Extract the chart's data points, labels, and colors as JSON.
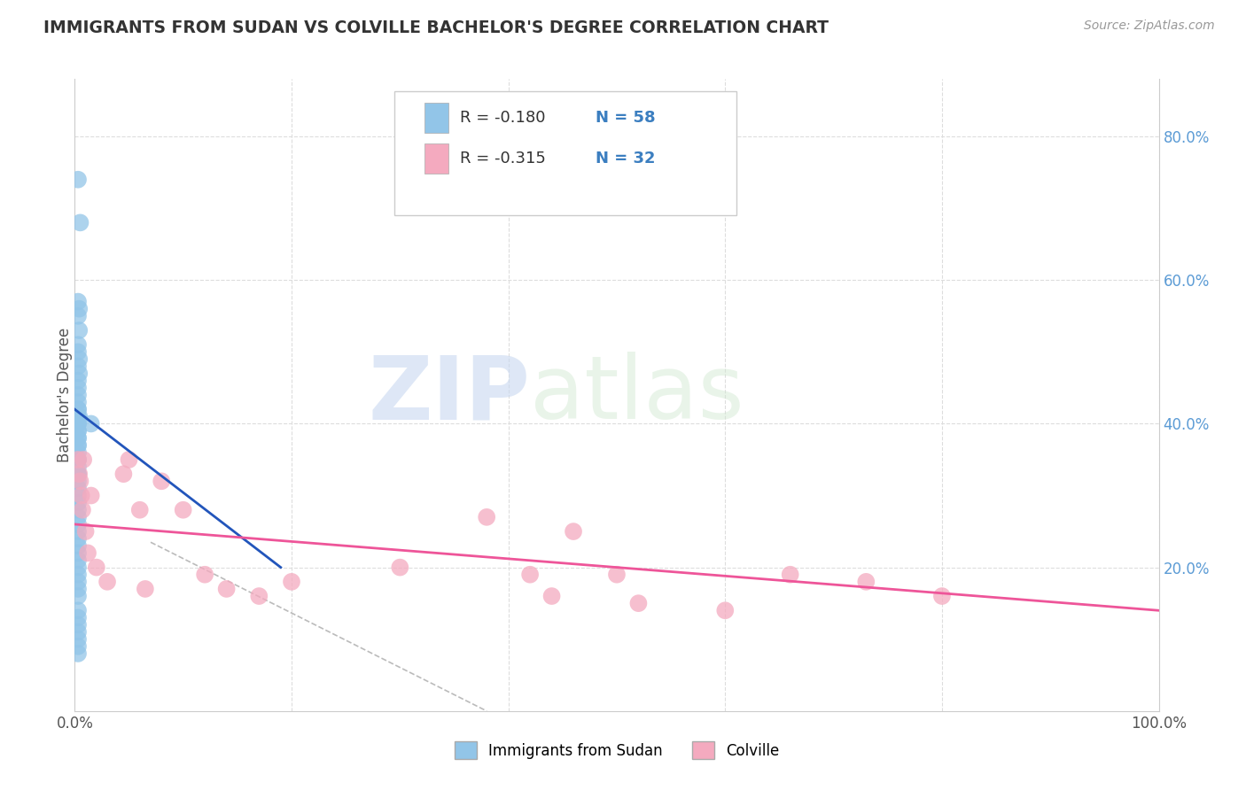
{
  "title": "IMMIGRANTS FROM SUDAN VS COLVILLE BACHELOR'S DEGREE CORRELATION CHART",
  "source": "Source: ZipAtlas.com",
  "ylabel": "Bachelor's Degree",
  "watermark_zip": "ZIP",
  "watermark_atlas": "atlas",
  "legend_r1": "R = -0.180",
  "legend_n1": "N = 58",
  "legend_r2": "R = -0.315",
  "legend_n2": "N = 32",
  "legend_label1": "Immigrants from Sudan",
  "legend_label2": "Colville",
  "blue_scatter_x": [
    0.003,
    0.005,
    0.003,
    0.004,
    0.003,
    0.004,
    0.003,
    0.003,
    0.004,
    0.003,
    0.004,
    0.003,
    0.003,
    0.003,
    0.003,
    0.003,
    0.003,
    0.003,
    0.004,
    0.003,
    0.003,
    0.003,
    0.003,
    0.003,
    0.003,
    0.003,
    0.003,
    0.003,
    0.003,
    0.003,
    0.003,
    0.003,
    0.003,
    0.003,
    0.003,
    0.003,
    0.003,
    0.003,
    0.015,
    0.003,
    0.003,
    0.003,
    0.003,
    0.003,
    0.003,
    0.003,
    0.003,
    0.003,
    0.003,
    0.003,
    0.003,
    0.003,
    0.003,
    0.003,
    0.003,
    0.003,
    0.003,
    0.003
  ],
  "blue_scatter_y": [
    0.74,
    0.68,
    0.57,
    0.56,
    0.55,
    0.53,
    0.51,
    0.5,
    0.49,
    0.48,
    0.47,
    0.46,
    0.45,
    0.44,
    0.43,
    0.42,
    0.42,
    0.41,
    0.41,
    0.4,
    0.4,
    0.39,
    0.39,
    0.38,
    0.38,
    0.37,
    0.37,
    0.36,
    0.35,
    0.34,
    0.33,
    0.33,
    0.32,
    0.31,
    0.3,
    0.29,
    0.28,
    0.27,
    0.4,
    0.35,
    0.26,
    0.25,
    0.24,
    0.23,
    0.22,
    0.21,
    0.2,
    0.19,
    0.18,
    0.17,
    0.16,
    0.14,
    0.13,
    0.12,
    0.11,
    0.1,
    0.09,
    0.08
  ],
  "pink_scatter_x": [
    0.003,
    0.004,
    0.005,
    0.006,
    0.007,
    0.008,
    0.01,
    0.012,
    0.015,
    0.02,
    0.03,
    0.045,
    0.05,
    0.06,
    0.065,
    0.08,
    0.1,
    0.12,
    0.14,
    0.17,
    0.2,
    0.3,
    0.38,
    0.42,
    0.44,
    0.46,
    0.5,
    0.52,
    0.6,
    0.66,
    0.73,
    0.8
  ],
  "pink_scatter_y": [
    0.35,
    0.33,
    0.32,
    0.3,
    0.28,
    0.35,
    0.25,
    0.22,
    0.3,
    0.2,
    0.18,
    0.33,
    0.35,
    0.28,
    0.17,
    0.32,
    0.28,
    0.19,
    0.17,
    0.16,
    0.18,
    0.2,
    0.27,
    0.19,
    0.16,
    0.25,
    0.19,
    0.15,
    0.14,
    0.19,
    0.18,
    0.16
  ],
  "blue_color": "#92C5E8",
  "pink_color": "#F4AABF",
  "blue_line_color": "#2255BB",
  "pink_line_color": "#EE5599",
  "dashed_line_color": "#BBBBBB",
  "grid_color": "#DDDDDD",
  "title_color": "#333333",
  "source_color": "#999999",
  "xlim": [
    0.0,
    1.0
  ],
  "ylim": [
    0.0,
    0.88
  ],
  "right_yticks": [
    0.2,
    0.4,
    0.6,
    0.8
  ],
  "right_yticklabels": [
    "20.0%",
    "40.0%",
    "60.0%",
    "80.0%"
  ],
  "blue_line_x": [
    0.0,
    0.19
  ],
  "blue_line_y": [
    0.42,
    0.2
  ],
  "pink_line_x": [
    0.0,
    1.0
  ],
  "pink_line_y": [
    0.26,
    0.14
  ],
  "dash_line_x": [
    0.07,
    0.38
  ],
  "dash_line_y": [
    0.235,
    0.0
  ]
}
